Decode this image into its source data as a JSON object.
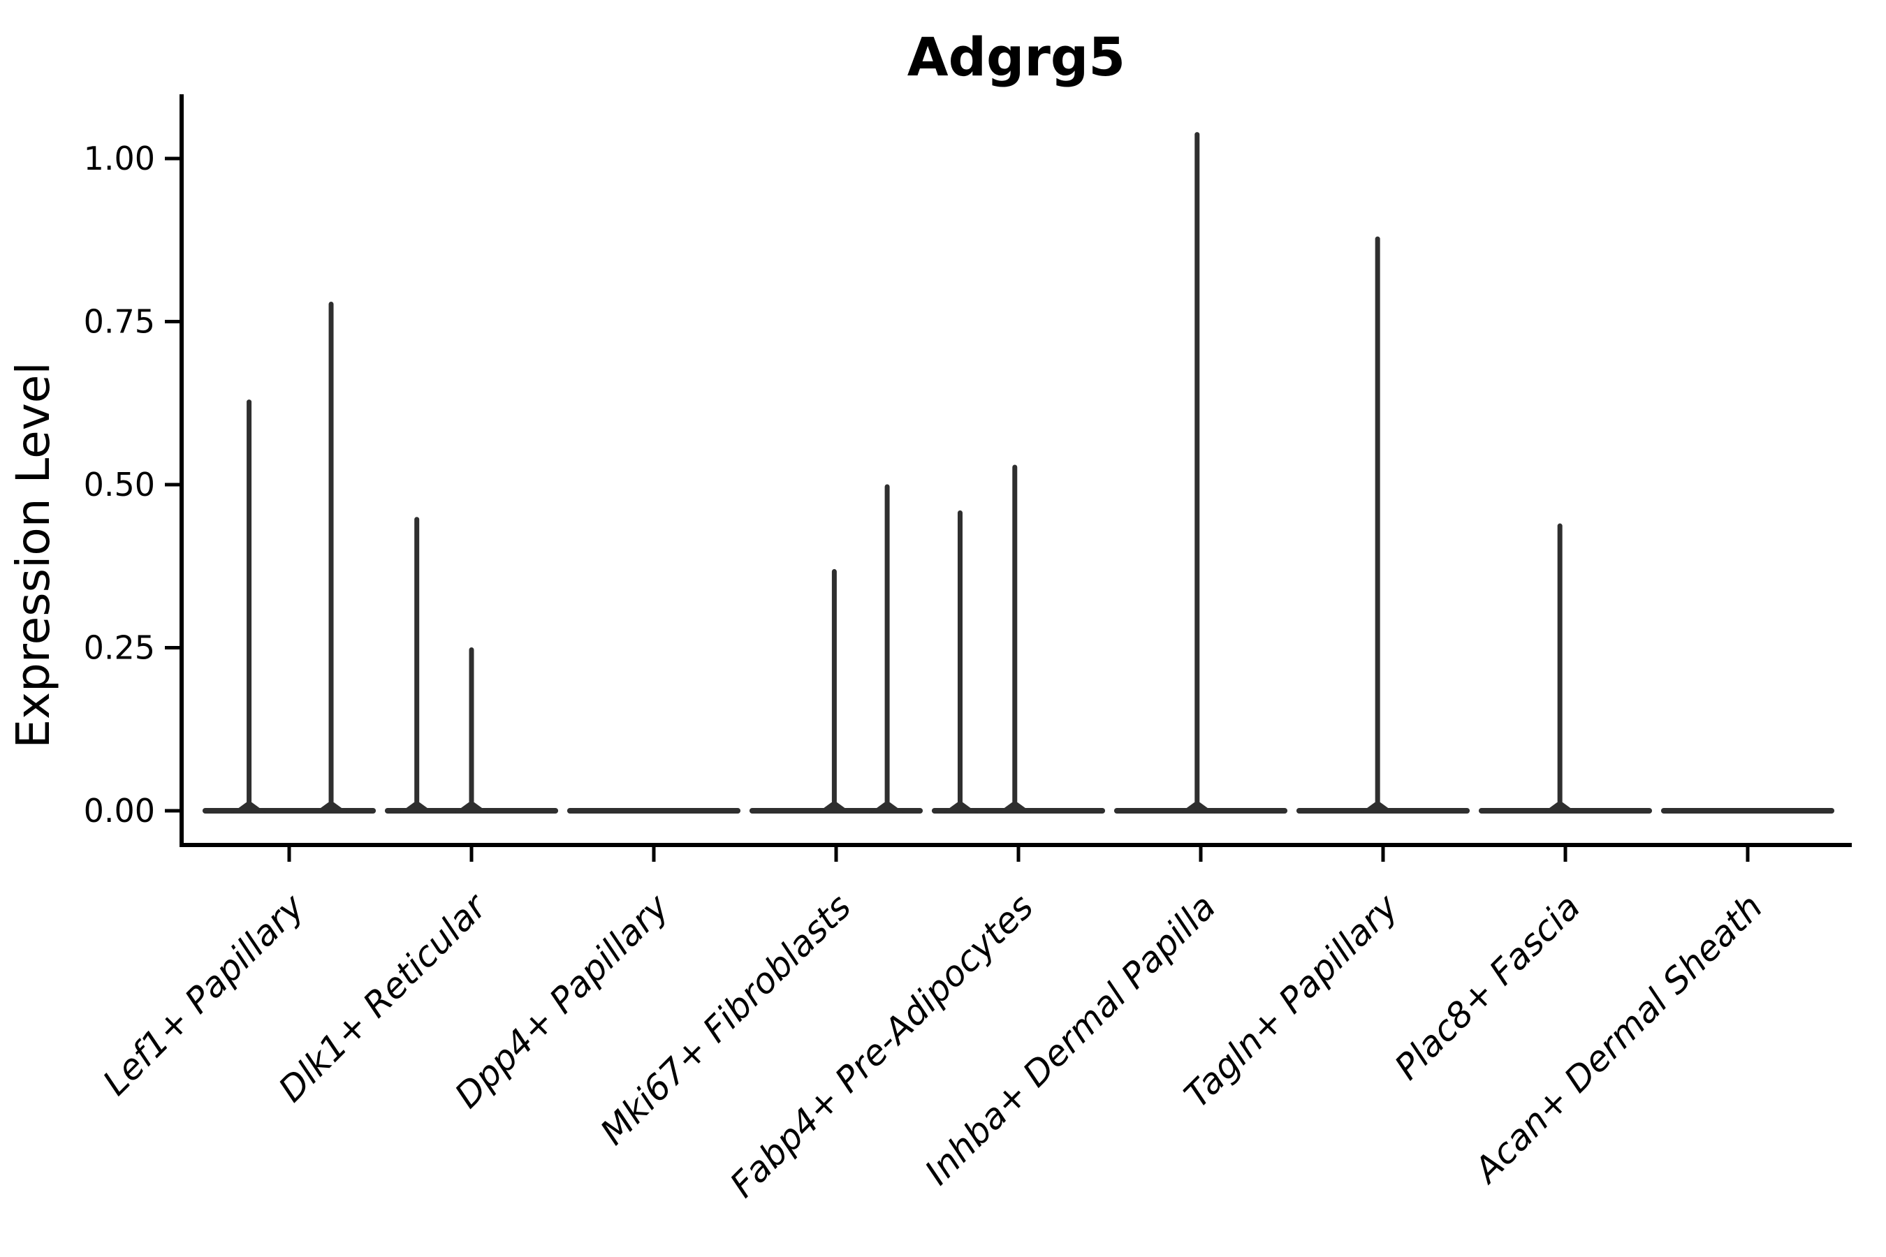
{
  "chart_data": {
    "type": "violin",
    "title": "Adgrg5",
    "ylabel": "Expression Level",
    "xlabel": "",
    "grid": false,
    "legend": "none",
    "ylim": [
      -0.05,
      1.1
    ],
    "yticks": [
      {
        "value": 0.0,
        "label": "0.00"
      },
      {
        "value": 0.25,
        "label": "0.25"
      },
      {
        "value": 0.5,
        "label": "0.50"
      },
      {
        "value": 0.75,
        "label": "0.75"
      },
      {
        "value": 1.0,
        "label": "1.00"
      }
    ],
    "categories": [
      "Lef1+ Papillary",
      "Dlk1+ Reticular",
      "Dpp4+ Papillary",
      "Mki67+ Fibroblasts",
      "Fabp4+ Pre-Adipocytes",
      "Inhba+ Dermal Papilla",
      "Tagln+ Papillary",
      "Plac8+ Fascia",
      "Acan+ Dermal Sheath"
    ],
    "violins": [
      {
        "category": "Lef1+ Papillary",
        "baseline_value": 0.0,
        "spikes": [
          {
            "offset": -0.22,
            "peak": 0.63
          },
          {
            "offset": 0.23,
            "peak": 0.78
          }
        ]
      },
      {
        "category": "Dlk1+ Reticular",
        "baseline_value": 0.0,
        "spikes": [
          {
            "offset": -0.3,
            "peak": 0.45
          },
          {
            "offset": 0.0,
            "peak": 0.25
          }
        ]
      },
      {
        "category": "Dpp4+ Papillary",
        "baseline_value": 0.0,
        "spikes": []
      },
      {
        "category": "Mki67+ Fibroblasts",
        "baseline_value": 0.0,
        "spikes": [
          {
            "offset": -0.01,
            "peak": 0.37
          },
          {
            "offset": 0.28,
            "peak": 0.5
          }
        ]
      },
      {
        "category": "Fabp4+ Pre-Adipocytes",
        "baseline_value": 0.0,
        "spikes": [
          {
            "offset": -0.32,
            "peak": 0.46
          },
          {
            "offset": -0.02,
            "peak": 0.53
          }
        ]
      },
      {
        "category": "Inhba+ Dermal Papilla",
        "baseline_value": 0.0,
        "spikes": [
          {
            "offset": -0.02,
            "peak": 1.04
          }
        ]
      },
      {
        "category": "Tagln+ Papillary",
        "baseline_value": 0.0,
        "spikes": [
          {
            "offset": -0.03,
            "peak": 0.88
          }
        ]
      },
      {
        "category": "Plac8+ Fascia",
        "baseline_value": 0.0,
        "spikes": [
          {
            "offset": -0.03,
            "peak": 0.44
          }
        ]
      },
      {
        "category": "Acan+ Dermal Sheath",
        "baseline_value": 0.0,
        "spikes": []
      }
    ],
    "violin_half_width": 0.46,
    "colors": {
      "violin_line": "#2f2f2f",
      "axis": "#000000",
      "text": "#000000",
      "background": "#ffffff"
    }
  }
}
